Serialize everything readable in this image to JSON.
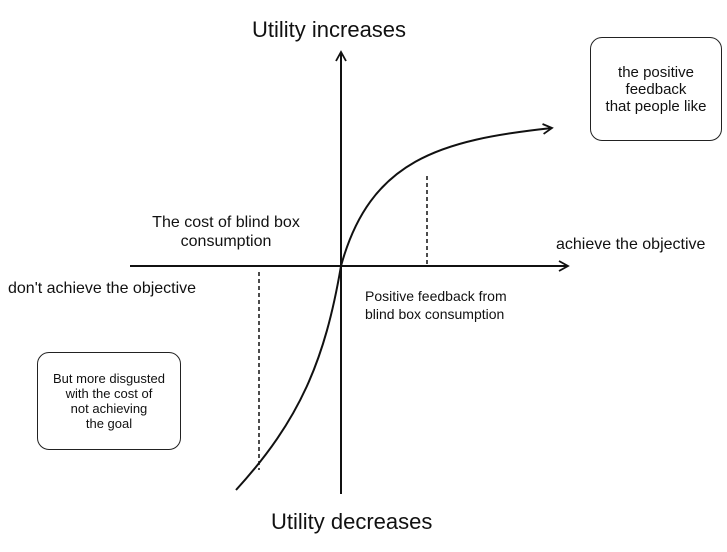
{
  "axes": {
    "top_label": "Utility increases",
    "bottom_label": "Utility decreases",
    "right_label": "achieve the objective",
    "left_label": "don't achieve the objective"
  },
  "annotations": {
    "cost_label": [
      "The cost of blind box",
      "consumption"
    ],
    "feedback_label": [
      "Positive feedback from",
      "blind box consumption"
    ]
  },
  "boxes": {
    "positive_feedback": [
      "the positive",
      "feedback",
      "that people like"
    ],
    "disgusted_cost": [
      "But more disgusted",
      "with the cost of",
      "not achieving",
      "the goal"
    ]
  },
  "colors": {
    "ink": "#111111",
    "background": "#ffffff"
  }
}
